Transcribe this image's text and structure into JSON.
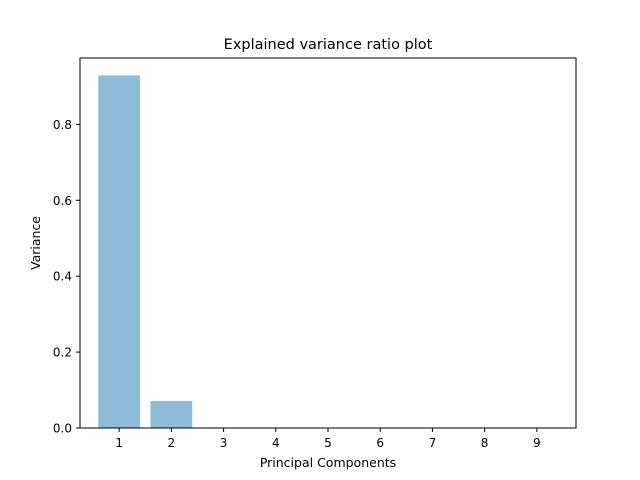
{
  "chart_data": {
    "type": "bar",
    "title": "Explained variance ratio plot",
    "xlabel": "Principal Components",
    "ylabel": "Variance",
    "categories": [
      "1",
      "2",
      "3",
      "4",
      "5",
      "6",
      "7",
      "8",
      "9"
    ],
    "values": [
      0.929,
      0.071,
      0.0,
      0.0,
      0.0,
      0.0,
      0.0,
      0.0,
      0.0
    ],
    "ylim": [
      0,
      0.975
    ],
    "yticks": [
      "0.0",
      "0.2",
      "0.4",
      "0.6",
      "0.8"
    ],
    "grid": false,
    "bar_color": "#8fbbd9"
  }
}
